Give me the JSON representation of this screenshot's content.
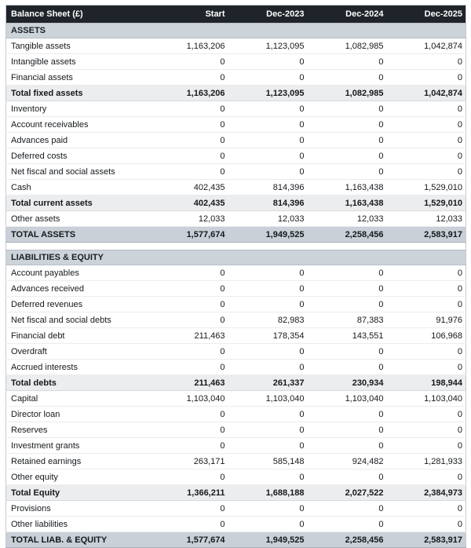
{
  "table": {
    "title": "Balance Sheet (£)",
    "columns": [
      "Start",
      "Dec-2023",
      "Dec-2024",
      "Dec-2025"
    ],
    "sections": [
      {
        "name": "ASSETS",
        "rows": [
          {
            "label": "Tangible assets",
            "style": "normal",
            "values": [
              "1,163,206",
              "1,123,095",
              "1,082,985",
              "1,042,874"
            ]
          },
          {
            "label": "Intangible assets",
            "style": "normal",
            "values": [
              "0",
              "0",
              "0",
              "0"
            ]
          },
          {
            "label": "Financial assets",
            "style": "normal",
            "values": [
              "0",
              "0",
              "0",
              "0"
            ]
          },
          {
            "label": "Total fixed assets",
            "style": "subtotal",
            "values": [
              "1,163,206",
              "1,123,095",
              "1,082,985",
              "1,042,874"
            ]
          },
          {
            "label": "Inventory",
            "style": "normal",
            "values": [
              "0",
              "0",
              "0",
              "0"
            ]
          },
          {
            "label": "Account receivables",
            "style": "normal",
            "values": [
              "0",
              "0",
              "0",
              "0"
            ]
          },
          {
            "label": "Advances paid",
            "style": "normal",
            "values": [
              "0",
              "0",
              "0",
              "0"
            ]
          },
          {
            "label": "Deferred costs",
            "style": "normal",
            "values": [
              "0",
              "0",
              "0",
              "0"
            ]
          },
          {
            "label": "Net fiscal and social assets",
            "style": "normal",
            "values": [
              "0",
              "0",
              "0",
              "0"
            ]
          },
          {
            "label": "Cash",
            "style": "normal",
            "values": [
              "402,435",
              "814,396",
              "1,163,438",
              "1,529,010"
            ]
          },
          {
            "label": "Total current assets",
            "style": "subtotal",
            "values": [
              "402,435",
              "814,396",
              "1,163,438",
              "1,529,010"
            ]
          },
          {
            "label": "Other assets",
            "style": "normal",
            "values": [
              "12,033",
              "12,033",
              "12,033",
              "12,033"
            ]
          },
          {
            "label": "TOTAL ASSETS",
            "style": "grand",
            "values": [
              "1,577,674",
              "1,949,525",
              "2,258,456",
              "2,583,917"
            ]
          }
        ]
      },
      {
        "name": "LIABILITIES & EQUITY",
        "rows": [
          {
            "label": "Account payables",
            "style": "normal",
            "values": [
              "0",
              "0",
              "0",
              "0"
            ]
          },
          {
            "label": "Advances received",
            "style": "normal",
            "values": [
              "0",
              "0",
              "0",
              "0"
            ]
          },
          {
            "label": "Deferred revenues",
            "style": "normal",
            "values": [
              "0",
              "0",
              "0",
              "0"
            ]
          },
          {
            "label": "Net fiscal and social debts",
            "style": "normal",
            "values": [
              "0",
              "82,983",
              "87,383",
              "91,976"
            ]
          },
          {
            "label": "Financial debt",
            "style": "normal",
            "values": [
              "211,463",
              "178,354",
              "143,551",
              "106,968"
            ]
          },
          {
            "label": "Overdraft",
            "style": "normal",
            "values": [
              "0",
              "0",
              "0",
              "0"
            ]
          },
          {
            "label": "Accrued interests",
            "style": "normal",
            "values": [
              "0",
              "0",
              "0",
              "0"
            ]
          },
          {
            "label": "Total debts",
            "style": "subtotal",
            "values": [
              "211,463",
              "261,337",
              "230,934",
              "198,944"
            ]
          },
          {
            "label": "Capital",
            "style": "normal",
            "values": [
              "1,103,040",
              "1,103,040",
              "1,103,040",
              "1,103,040"
            ]
          },
          {
            "label": "Director loan",
            "style": "normal",
            "values": [
              "0",
              "0",
              "0",
              "0"
            ]
          },
          {
            "label": "Reserves",
            "style": "normal",
            "values": [
              "0",
              "0",
              "0",
              "0"
            ]
          },
          {
            "label": "Investment grants",
            "style": "normal",
            "values": [
              "0",
              "0",
              "0",
              "0"
            ]
          },
          {
            "label": "Retained earnings",
            "style": "normal",
            "values": [
              "263,171",
              "585,148",
              "924,482",
              "1,281,933"
            ]
          },
          {
            "label": "Other equity",
            "style": "normal",
            "values": [
              "0",
              "0",
              "0",
              "0"
            ]
          },
          {
            "label": "Total Equity",
            "style": "subtotal",
            "values": [
              "1,366,211",
              "1,688,188",
              "2,027,522",
              "2,384,973"
            ]
          },
          {
            "label": "Provisions",
            "style": "normal",
            "values": [
              "0",
              "0",
              "0",
              "0"
            ]
          },
          {
            "label": "Other liabilities",
            "style": "normal",
            "values": [
              "0",
              "0",
              "0",
              "0"
            ]
          },
          {
            "label": "TOTAL LIAB. & EQUITY",
            "style": "grand",
            "values": [
              "1,577,674",
              "1,949,525",
              "2,258,456",
              "2,583,917"
            ]
          }
        ]
      }
    ]
  },
  "colors": {
    "header_bg": "#1f242a",
    "header_text": "#ffffff",
    "section_header_bg": "#ccd3d9",
    "subtotal_row_bg": "#ebedef",
    "grand_total_row_bg": "#c9d0d7",
    "body_text": "#15191d",
    "row_divider": "#ebecee"
  }
}
